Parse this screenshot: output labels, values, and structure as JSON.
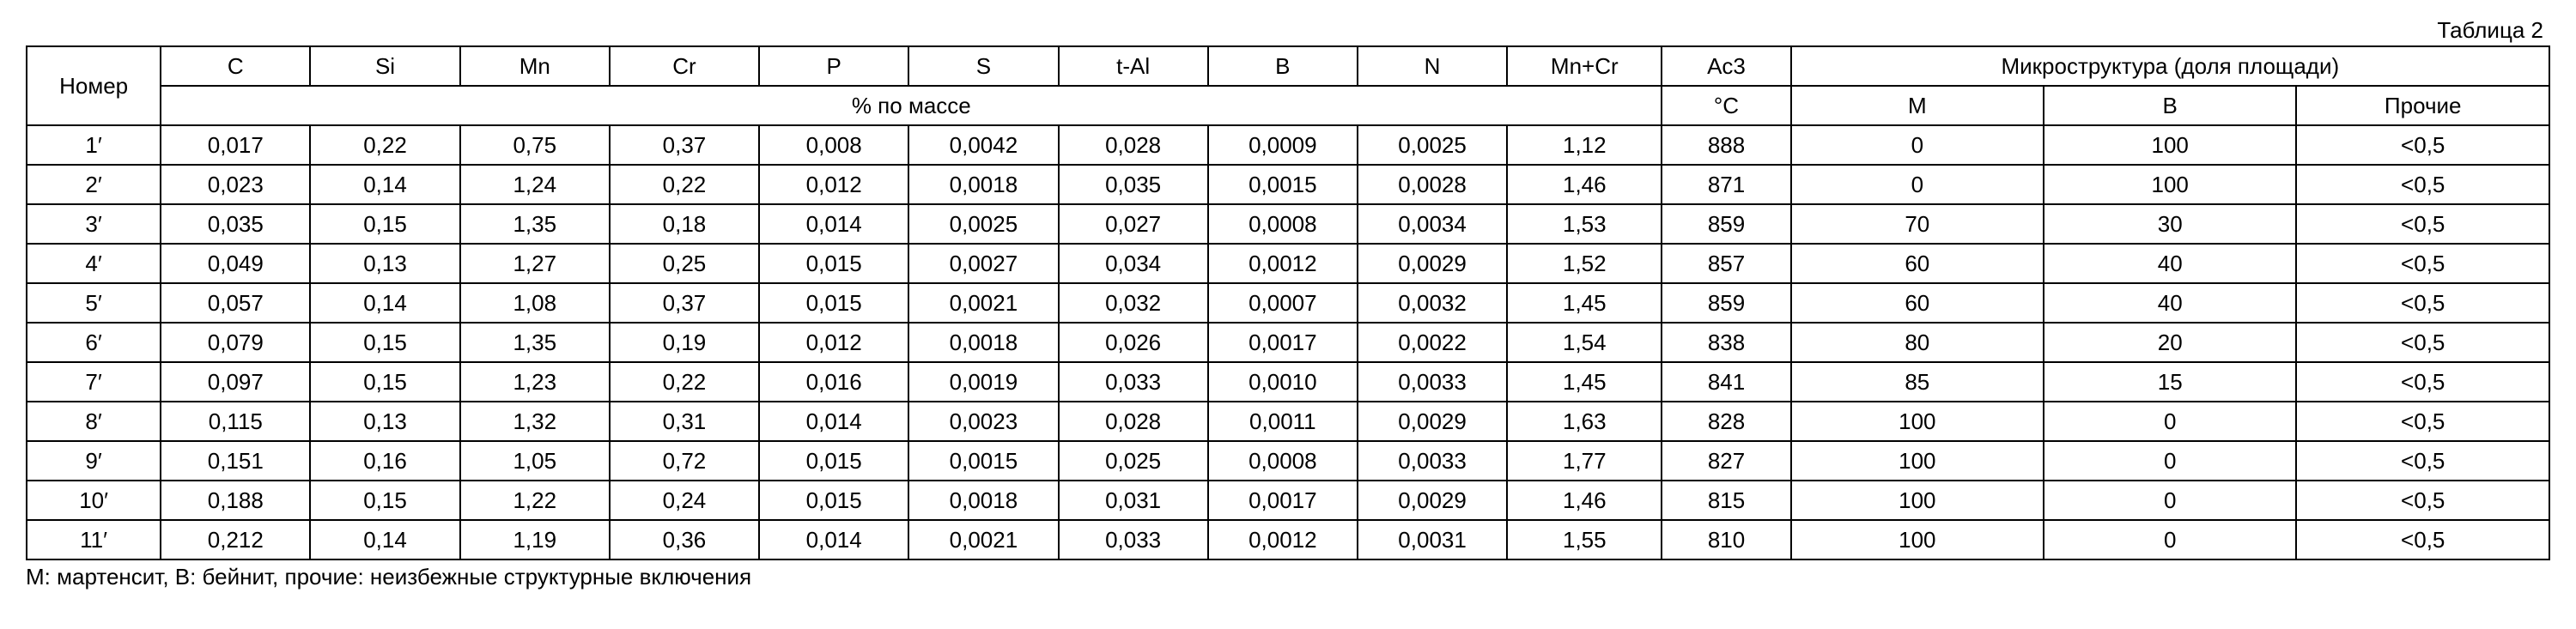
{
  "caption": "Таблица 2",
  "footnote": "М: мартенсит, В: бейнит, прочие: неизбежные структурные включения",
  "header": {
    "num": "Номер",
    "cols_top": [
      "C",
      "Si",
      "Mn",
      "Cr",
      "P",
      "S",
      "t-Al",
      "B",
      "N",
      "Mn+Cr",
      "Ac3"
    ],
    "micro_top": "Микроструктура (доля площади)",
    "mass_pct": "% по массе",
    "ac3_unit": "°C",
    "micro_sub": [
      "М",
      "В",
      "Прочие"
    ]
  },
  "rows": [
    {
      "n": "1′",
      "c": [
        "0,017",
        "0,22",
        "0,75",
        "0,37",
        "0,008",
        "0,0042",
        "0,028",
        "0,0009",
        "0,0025",
        "1,12",
        "888",
        "0",
        "100",
        "<0,5"
      ]
    },
    {
      "n": "2′",
      "c": [
        "0,023",
        "0,14",
        "1,24",
        "0,22",
        "0,012",
        "0,0018",
        "0,035",
        "0,0015",
        "0,0028",
        "1,46",
        "871",
        "0",
        "100",
        "<0,5"
      ]
    },
    {
      "n": "3′",
      "c": [
        "0,035",
        "0,15",
        "1,35",
        "0,18",
        "0,014",
        "0,0025",
        "0,027",
        "0,0008",
        "0,0034",
        "1,53",
        "859",
        "70",
        "30",
        "<0,5"
      ]
    },
    {
      "n": "4′",
      "c": [
        "0,049",
        "0,13",
        "1,27",
        "0,25",
        "0,015",
        "0,0027",
        "0,034",
        "0,0012",
        "0,0029",
        "1,52",
        "857",
        "60",
        "40",
        "<0,5"
      ]
    },
    {
      "n": "5′",
      "c": [
        "0,057",
        "0,14",
        "1,08",
        "0,37",
        "0,015",
        "0,0021",
        "0,032",
        "0,0007",
        "0,0032",
        "1,45",
        "859",
        "60",
        "40",
        "<0,5"
      ]
    },
    {
      "n": "6′",
      "c": [
        "0,079",
        "0,15",
        "1,35",
        "0,19",
        "0,012",
        "0,0018",
        "0,026",
        "0,0017",
        "0,0022",
        "1,54",
        "838",
        "80",
        "20",
        "<0,5"
      ]
    },
    {
      "n": "7′",
      "c": [
        "0,097",
        "0,15",
        "1,23",
        "0,22",
        "0,016",
        "0,0019",
        "0,033",
        "0,0010",
        "0,0033",
        "1,45",
        "841",
        "85",
        "15",
        "<0,5"
      ]
    },
    {
      "n": "8′",
      "c": [
        "0,115",
        "0,13",
        "1,32",
        "0,31",
        "0,014",
        "0,0023",
        "0,028",
        "0,0011",
        "0,0029",
        "1,63",
        "828",
        "100",
        "0",
        "<0,5"
      ]
    },
    {
      "n": "9′",
      "c": [
        "0,151",
        "0,16",
        "1,05",
        "0,72",
        "0,015",
        "0,0015",
        "0,025",
        "0,0008",
        "0,0033",
        "1,77",
        "827",
        "100",
        "0",
        "<0,5"
      ]
    },
    {
      "n": "10′",
      "c": [
        "0,188",
        "0,15",
        "1,22",
        "0,24",
        "0,015",
        "0,0018",
        "0,031",
        "0,0017",
        "0,0029",
        "1,46",
        "815",
        "100",
        "0",
        "<0,5"
      ]
    },
    {
      "n": "11′",
      "c": [
        "0,212",
        "0,14",
        "1,19",
        "0,36",
        "0,014",
        "0,0021",
        "0,033",
        "0,0012",
        "0,0031",
        "1,55",
        "810",
        "100",
        "0",
        "<0,5"
      ]
    }
  ]
}
